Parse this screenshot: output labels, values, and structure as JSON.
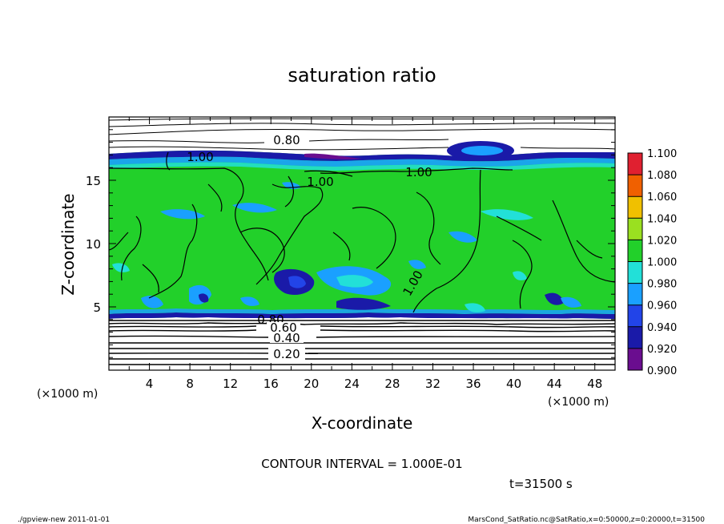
{
  "chart_data": {
    "type": "heatmap",
    "title": "saturation ratio",
    "xlabel": "X-coordinate",
    "ylabel": "Z-coordinate",
    "x_unit": "(×1000 m)",
    "y_unit": "(×1000 m)",
    "xlim": [
      0,
      50
    ],
    "ylim": [
      0,
      20
    ],
    "x_ticks": [
      "4",
      "8",
      "12",
      "16",
      "20",
      "24",
      "28",
      "32",
      "36",
      "40",
      "44",
      "48"
    ],
    "y_ticks": [
      "5",
      "10",
      "15"
    ],
    "colorbar": {
      "levels": [
        "0.900",
        "0.920",
        "0.940",
        "0.960",
        "0.980",
        "1.000",
        "1.020",
        "1.040",
        "1.060",
        "1.080",
        "1.100"
      ],
      "colors": [
        "#6a0d8f",
        "#1a1aa8",
        "#2244e8",
        "#1aa0ff",
        "#22e0d8",
        "#22d02a",
        "#9ae020",
        "#f0c000",
        "#f06000",
        "#e02030"
      ]
    },
    "contour_labels": [
      "0.80",
      "1.00",
      "1.00",
      "1.00",
      "1.00",
      "0.80",
      "0.60",
      "0.40",
      "0.20"
    ],
    "contour_interval_text": "CONTOUR INTERVAL = 1.000E-01",
    "time_text": "t=31500 s"
  },
  "footer": {
    "left": "./gpview-new   2011-01-01",
    "right": "MarsCond_SatRatio.nc@SatRatio,x=0:50000,z=0:20000,t=31500"
  },
  "colors": {
    "field_green": "#22d02a",
    "deep_blue": "#1a1aa8",
    "cyan": "#1aa0ff",
    "axis": "#000000"
  }
}
